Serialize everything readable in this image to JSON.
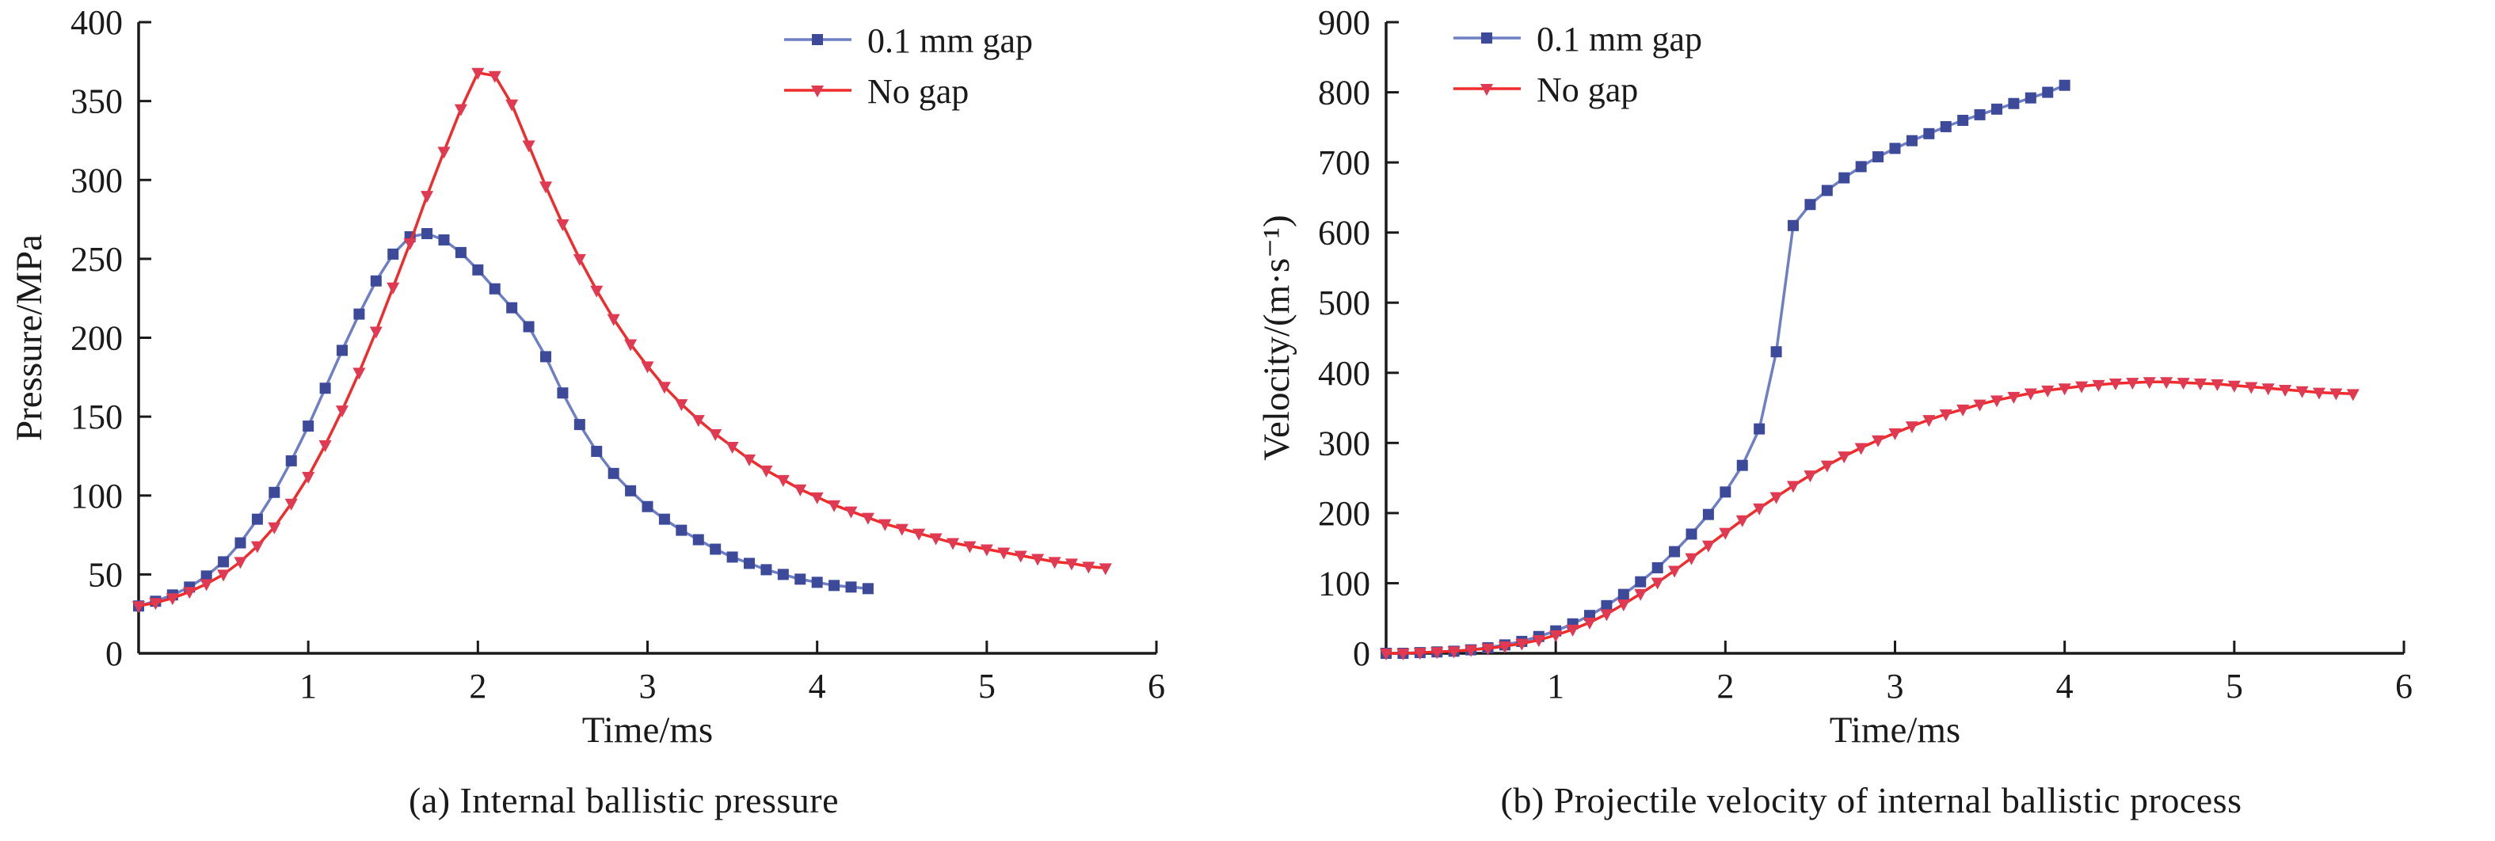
{
  "figure": {
    "background": "#ffffff",
    "axis_color": "#1a1a1a"
  },
  "chart_data": [
    {
      "type": "line",
      "caption": "(a) Internal ballistic pressure",
      "xlabel": "Time/ms",
      "ylabel": "Pressure/MPa",
      "xlim": [
        0,
        6
      ],
      "ylim": [
        0,
        400
      ],
      "xticks": [
        1,
        2,
        3,
        4,
        5,
        6
      ],
      "yticks": [
        0,
        50,
        100,
        150,
        200,
        250,
        300,
        350,
        400
      ],
      "grid": false,
      "legend": {
        "position": "top-right",
        "entries": [
          "0.1 mm gap",
          "No gap"
        ]
      },
      "series": [
        {
          "name": "0.1 mm gap",
          "marker": "square",
          "line_color": "#6f7fc4",
          "marker_color": "#3d4a9a",
          "x0": 0,
          "dx": 0.1,
          "y": [
            30,
            33,
            37,
            42,
            49,
            58,
            70,
            85,
            102,
            122,
            144,
            168,
            192,
            215,
            236,
            253,
            264,
            266,
            262,
            254,
            243,
            231,
            219,
            207,
            188,
            165,
            145,
            128,
            114,
            103,
            93,
            85,
            78,
            72,
            66,
            61,
            57,
            53,
            50,
            47,
            45,
            43,
            42,
            41
          ]
        },
        {
          "name": "No gap",
          "marker": "triangle-down",
          "line_color": "#f02b2b",
          "marker_color": "#e03a52",
          "x0": 0,
          "dx": 0.1,
          "y": [
            30,
            32,
            35,
            39,
            44,
            50,
            58,
            68,
            80,
            95,
            112,
            132,
            154,
            178,
            204,
            232,
            260,
            290,
            318,
            345,
            368,
            366,
            348,
            322,
            296,
            272,
            250,
            230,
            212,
            196,
            182,
            169,
            158,
            148,
            139,
            131,
            123,
            116,
            110,
            104,
            99,
            94,
            90,
            86,
            82,
            79,
            76,
            73,
            70,
            68,
            66,
            64,
            62,
            60,
            58,
            57,
            55,
            54
          ]
        }
      ]
    },
    {
      "type": "line",
      "caption": "(b) Projectile velocity of internal ballistic process",
      "xlabel": "Time/ms",
      "ylabel": "Velocity/(m·s⁻¹)",
      "xlim": [
        0,
        6
      ],
      "ylim": [
        0,
        900
      ],
      "xticks": [
        1,
        2,
        3,
        4,
        5,
        6
      ],
      "yticks": [
        0,
        100,
        200,
        300,
        400,
        500,
        600,
        700,
        800,
        900
      ],
      "grid": false,
      "legend": {
        "position": "top-left",
        "entries": [
          "0.1 mm gap",
          "No gap"
        ]
      },
      "series": [
        {
          "name": "0.1 mm gap",
          "marker": "square",
          "line_color": "#6f7fc4",
          "marker_color": "#3d4a9a",
          "x0": 0,
          "dx": 0.1,
          "y": [
            0,
            0,
            1,
            2,
            3,
            5,
            8,
            12,
            17,
            24,
            32,
            42,
            54,
            68,
            84,
            102,
            122,
            145,
            170,
            198,
            230,
            268,
            320,
            430,
            610,
            640,
            660,
            678,
            694,
            708,
            720,
            731,
            741,
            751,
            760,
            768,
            776,
            784,
            792,
            800,
            810
          ]
        },
        {
          "name": "No gap",
          "marker": "triangle-down",
          "line_color": "#f02b2b",
          "marker_color": "#e03a52",
          "x0": 0,
          "dx": 0.1,
          "y": [
            0,
            0,
            1,
            2,
            3,
            5,
            7,
            10,
            14,
            19,
            26,
            34,
            44,
            56,
            70,
            85,
            101,
            118,
            136,
            154,
            172,
            190,
            207,
            223,
            239,
            254,
            268,
            281,
            293,
            304,
            314,
            324,
            333,
            341,
            348,
            355,
            361,
            366,
            371,
            375,
            378,
            381,
            383,
            385,
            386,
            387,
            387,
            386,
            385,
            384,
            382,
            380,
            378,
            376,
            374,
            372,
            371,
            370
          ]
        }
      ]
    }
  ]
}
